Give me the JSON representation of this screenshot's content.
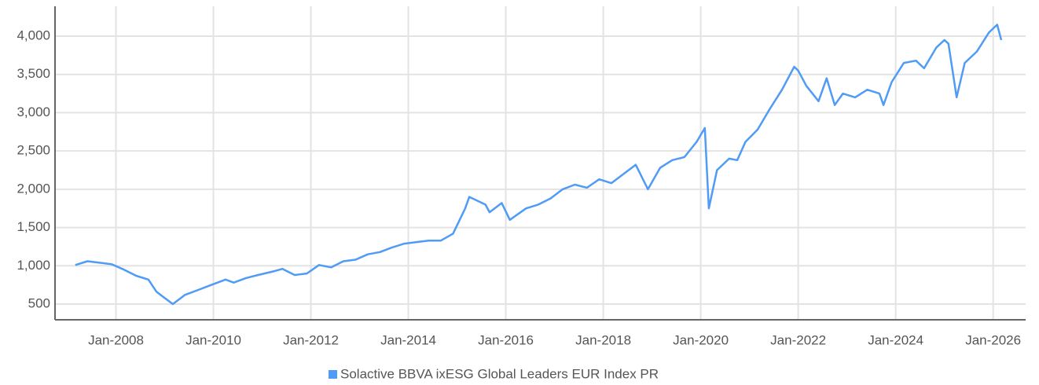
{
  "chart_data": {
    "type": "line",
    "x": [
      "2007-03",
      "2007-06",
      "2007-09",
      "2007-12",
      "2008-03",
      "2008-06",
      "2008-09",
      "2008-11",
      "2009-01",
      "2009-03",
      "2009-06",
      "2009-09",
      "2009-12",
      "2010-04",
      "2010-06",
      "2010-09",
      "2010-12",
      "2011-04",
      "2011-06",
      "2011-09",
      "2011-12",
      "2012-03",
      "2012-06",
      "2012-09",
      "2012-12",
      "2013-03",
      "2013-06",
      "2013-09",
      "2013-12",
      "2014-03",
      "2014-06",
      "2014-09",
      "2014-12",
      "2015-03",
      "2015-04",
      "2015-06",
      "2015-08",
      "2015-09",
      "2015-12",
      "2016-02",
      "2016-06",
      "2016-09",
      "2016-12",
      "2017-03",
      "2017-06",
      "2017-09",
      "2017-12",
      "2018-03",
      "2018-06",
      "2018-09",
      "2018-12",
      "2019-03",
      "2019-06",
      "2019-09",
      "2019-12",
      "2020-02",
      "2020-03",
      "2020-05",
      "2020-08",
      "2020-10",
      "2020-12",
      "2021-03",
      "2021-06",
      "2021-09",
      "2021-12",
      "2022-01",
      "2022-03",
      "2022-06",
      "2022-08",
      "2022-10",
      "2022-12",
      "2023-03",
      "2023-06",
      "2023-09",
      "2023-10",
      "2023-12",
      "2024-03",
      "2024-06",
      "2024-08",
      "2024-11",
      "2025-01",
      "2025-02",
      "2025-04",
      "2025-06",
      "2025-09",
      "2025-12",
      "2026-02",
      "2026-03"
    ],
    "series": [
      {
        "name": "Solactive BBVA ixESG Global Leaders EUR Index PR",
        "color": "#4f9bf5",
        "values": [
          1010,
          1060,
          1040,
          1020,
          950,
          870,
          820,
          660,
          580,
          500,
          620,
          680,
          740,
          820,
          780,
          840,
          880,
          930,
          960,
          880,
          900,
          1010,
          980,
          1060,
          1080,
          1150,
          1180,
          1240,
          1290,
          1310,
          1330,
          1330,
          1420,
          1750,
          1900,
          1850,
          1800,
          1700,
          1820,
          1600,
          1750,
          1800,
          1880,
          2000,
          2060,
          2020,
          2130,
          2080,
          2200,
          2320,
          2000,
          2280,
          2380,
          2420,
          2620,
          2800,
          1750,
          2250,
          2400,
          2380,
          2620,
          2780,
          3050,
          3300,
          3600,
          3550,
          3350,
          3150,
          3450,
          3100,
          3250,
          3200,
          3300,
          3250,
          3100,
          3400,
          3650,
          3680,
          3580,
          3850,
          3950,
          3900,
          3200,
          3650,
          3800,
          4050,
          4150,
          3950
        ]
      }
    ],
    "xlim": [
      "2006-10",
      "2026-09"
    ],
    "xticks": [
      {
        "value": "2008-01",
        "label": "Jan-2008"
      },
      {
        "value": "2010-01",
        "label": "Jan-2010"
      },
      {
        "value": "2012-01",
        "label": "Jan-2012"
      },
      {
        "value": "2014-01",
        "label": "Jan-2014"
      },
      {
        "value": "2016-01",
        "label": "Jan-2016"
      },
      {
        "value": "2018-01",
        "label": "Jan-2018"
      },
      {
        "value": "2020-01",
        "label": "Jan-2020"
      },
      {
        "value": "2022-01",
        "label": "Jan-2022"
      },
      {
        "value": "2024-01",
        "label": "Jan-2024"
      },
      {
        "value": "2026-01",
        "label": "Jan-2026"
      }
    ],
    "ylim": [
      295,
      4390
    ],
    "yticks": [
      500,
      {
        "value": 1000,
        "label": "1,000"
      },
      {
        "value": 1500,
        "label": "1,500"
      },
      {
        "value": 2000,
        "label": "2,000"
      },
      {
        "value": 2500,
        "label": "2,500"
      },
      {
        "value": 3000,
        "label": "3,000"
      },
      {
        "value": 3500,
        "label": "3,500"
      },
      {
        "value": 4000,
        "label": "4,000"
      }
    ],
    "grid": true,
    "legend": "bottom"
  }
}
